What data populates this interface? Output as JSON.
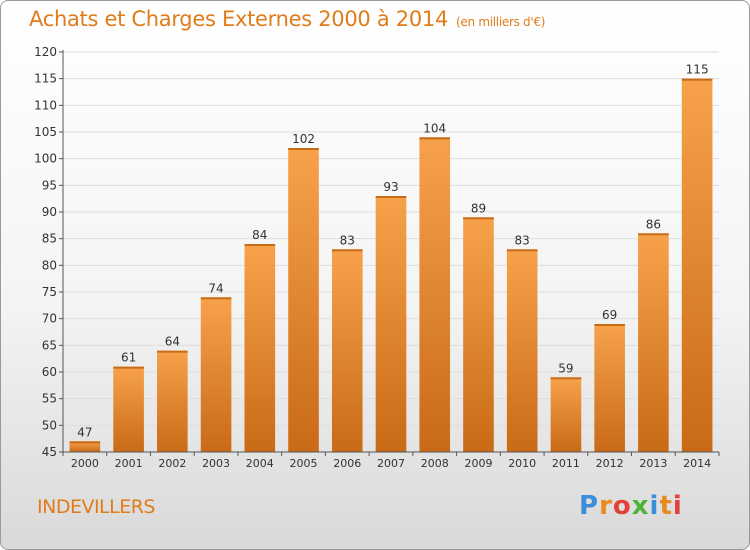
{
  "header": {
    "title": "Achats et Charges Externes 2000 à 2014",
    "subtitle": "(en milliers d'€)"
  },
  "footer": {
    "commune": "INDEVILLERS",
    "logo_letters": [
      "P",
      "r",
      "o",
      "x",
      "i",
      "t",
      "i"
    ],
    "logo_colors": [
      "#3a8fd8",
      "#e98a1e",
      "#e2403a",
      "#4fb33a",
      "#3a8fd8",
      "#e98a1e",
      "#e2403a"
    ]
  },
  "colors": {
    "bar_light": "#f7a24b",
    "bar_dark": "#c96a16",
    "axis": "#555555",
    "grid": "#dddddd",
    "text": "#333333"
  },
  "chart_data": {
    "type": "bar",
    "categories": [
      "2000",
      "2001",
      "2002",
      "2003",
      "2004",
      "2005",
      "2006",
      "2007",
      "2008",
      "2009",
      "2010",
      "2011",
      "2012",
      "2013",
      "2014"
    ],
    "values": [
      47,
      61,
      64,
      74,
      84,
      102,
      83,
      93,
      104,
      89,
      83,
      59,
      69,
      86,
      115
    ],
    "title": "Achats et Charges Externes 2000 à 2014",
    "ylim": [
      45,
      120
    ],
    "yticks": [
      45,
      50,
      55,
      60,
      65,
      70,
      75,
      80,
      85,
      90,
      95,
      100,
      105,
      110,
      115,
      120
    ],
    "grid": true,
    "data_labels": true
  }
}
